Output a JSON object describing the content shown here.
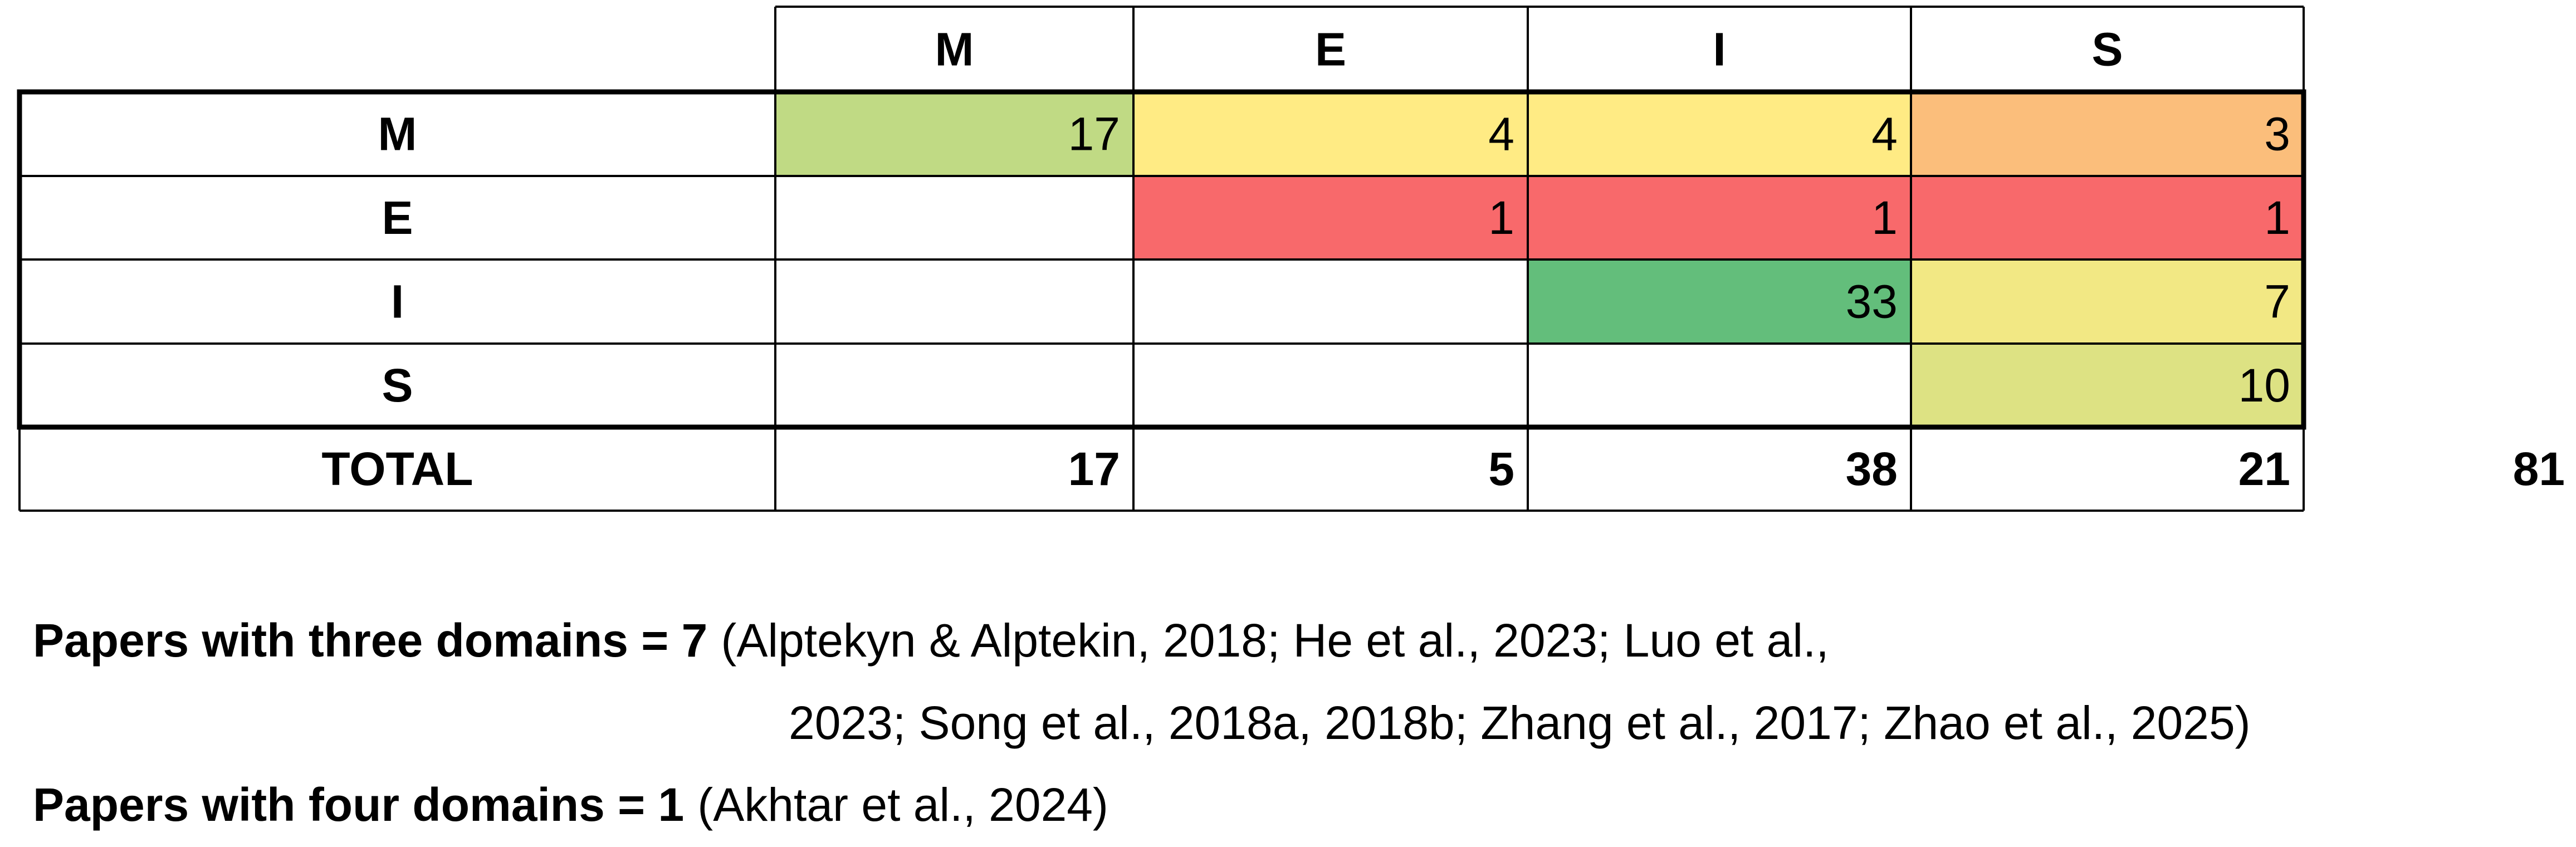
{
  "table": {
    "columns": [
      "M",
      "E",
      "I",
      "S"
    ],
    "rows": [
      {
        "label": "M",
        "cells": [
          {
            "value": 17,
            "color": "#c0da84"
          },
          {
            "value": 4,
            "color": "#ffeb84"
          },
          {
            "value": 4,
            "color": "#ffeb84"
          },
          {
            "value": 3,
            "color": "#fbbe7b"
          }
        ]
      },
      {
        "label": "E",
        "cells": [
          null,
          {
            "value": 1,
            "color": "#f8696b"
          },
          {
            "value": 1,
            "color": "#f8696b"
          },
          {
            "value": 1,
            "color": "#f8696b"
          }
        ]
      },
      {
        "label": "I",
        "cells": [
          null,
          null,
          {
            "value": 33,
            "color": "#63be7b"
          },
          {
            "value": 7,
            "color": "#f2e884"
          }
        ]
      },
      {
        "label": "S",
        "cells": [
          null,
          null,
          null,
          {
            "value": 10,
            "color": "#dde283"
          }
        ]
      }
    ],
    "total": {
      "label": "TOTAL",
      "values": [
        17,
        5,
        38,
        21
      ],
      "grand_total": 81
    }
  },
  "notes": [
    {
      "label": "Papers with three domains = 7",
      "lines": [
        "(Alptekyn & Alptekin, 2018; He et al., 2023; Luo et al.,",
        "2023; Song et al., 2018a, 2018b; Zhang et al., 2017; Zhao et al., 2025)"
      ]
    },
    {
      "label": "Papers with four domains = 1",
      "lines": [
        "(Akhtar et al., 2024)"
      ]
    }
  ]
}
